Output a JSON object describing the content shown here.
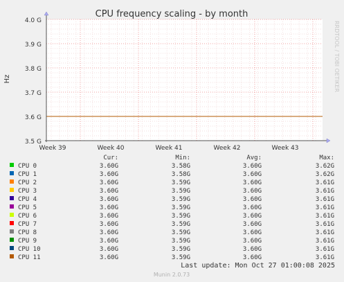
{
  "chart_data": {
    "type": "line",
    "title": "CPU frequency scaling - by month",
    "ylabel": "Hz",
    "ylim": [
      3.5,
      4.0
    ],
    "yticks": [
      {
        "value": 3.5,
        "label": "3.5 G"
      },
      {
        "value": 3.6,
        "label": "3.6 G"
      },
      {
        "value": 3.7,
        "label": "3.7 G"
      },
      {
        "value": 3.8,
        "label": "3.8 G"
      },
      {
        "value": 3.9,
        "label": "3.9 G"
      },
      {
        "value": 4.0,
        "label": "4.0 G"
      }
    ],
    "xticks": [
      "Week 39",
      "Week 40",
      "Week 41",
      "Week 42",
      "Week 43"
    ],
    "grid": true,
    "side_text": "RRDTOOL / TOBI OETIKER",
    "legend_headers": [
      "Cur:",
      "Min:",
      "Avg:",
      "Max:"
    ],
    "series": [
      {
        "name": "CPU 0",
        "color": "#00cc00",
        "cur": "3.60G",
        "min": "3.58G",
        "avg": "3.60G",
        "max": "3.62G"
      },
      {
        "name": "CPU 1",
        "color": "#0066b3",
        "cur": "3.60G",
        "min": "3.58G",
        "avg": "3.60G",
        "max": "3.62G"
      },
      {
        "name": "CPU 2",
        "color": "#ff8000",
        "cur": "3.60G",
        "min": "3.59G",
        "avg": "3.60G",
        "max": "3.61G"
      },
      {
        "name": "CPU 3",
        "color": "#ffcc00",
        "cur": "3.60G",
        "min": "3.59G",
        "avg": "3.60G",
        "max": "3.61G"
      },
      {
        "name": "CPU 4",
        "color": "#330099",
        "cur": "3.60G",
        "min": "3.59G",
        "avg": "3.60G",
        "max": "3.61G"
      },
      {
        "name": "CPU 5",
        "color": "#990099",
        "cur": "3.60G",
        "min": "3.59G",
        "avg": "3.60G",
        "max": "3.61G"
      },
      {
        "name": "CPU 6",
        "color": "#ccff00",
        "cur": "3.60G",
        "min": "3.59G",
        "avg": "3.60G",
        "max": "3.61G"
      },
      {
        "name": "CPU 7",
        "color": "#ff0000",
        "cur": "3.60G",
        "min": "3.59G",
        "avg": "3.60G",
        "max": "3.61G"
      },
      {
        "name": "CPU 8",
        "color": "#808080",
        "cur": "3.60G",
        "min": "3.59G",
        "avg": "3.60G",
        "max": "3.61G"
      },
      {
        "name": "CPU 9",
        "color": "#008f00",
        "cur": "3.60G",
        "min": "3.59G",
        "avg": "3.60G",
        "max": "3.61G"
      },
      {
        "name": "CPU 10",
        "color": "#00487d",
        "cur": "3.60G",
        "min": "3.59G",
        "avg": "3.60G",
        "max": "3.61G"
      },
      {
        "name": "CPU 11",
        "color": "#b35a00",
        "cur": "3.60G",
        "min": "3.59G",
        "avg": "3.60G",
        "max": "3.61G"
      }
    ],
    "line_value": 3.6,
    "last_update": "Last update: Mon Oct 27 01:00:08 2025",
    "footer": "Munin 2.0.73"
  }
}
